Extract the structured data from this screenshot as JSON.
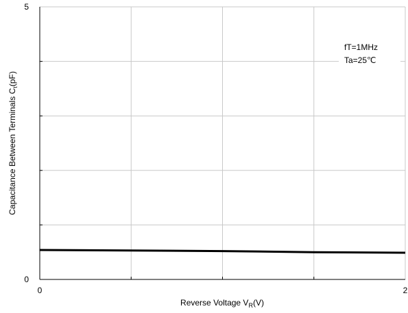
{
  "chart_data": {
    "type": "line",
    "x_label": {
      "prefix": "Reverse Voltage V",
      "sub": "R",
      "suffix": "(V)"
    },
    "y_label": {
      "prefix": "Capacitance Between Terminals C",
      "sub": "t",
      "suffix": "(pF)"
    },
    "xlim": [
      0,
      2
    ],
    "ylim": [
      0,
      5
    ],
    "x_tick_labels": [
      {
        "value": 0,
        "label": "0"
      },
      {
        "value": 2,
        "label": "2"
      }
    ],
    "y_tick_labels": [
      {
        "value": 0,
        "label": "0"
      },
      {
        "value": 5,
        "label": "5"
      }
    ],
    "x_gridlines": [
      0.5,
      1.0,
      1.5
    ],
    "y_gridlines": [
      1,
      2,
      3,
      4
    ],
    "grid": true,
    "series": [
      {
        "color": "#000000",
        "x": [
          0,
          0.5,
          1.0,
          1.5,
          2.0
        ],
        "y": [
          0.54,
          0.53,
          0.52,
          0.5,
          0.49
        ]
      }
    ],
    "annotations": [
      "fT=1MHz",
      "Ta=25℃"
    ],
    "annotation_position": "top-right"
  }
}
